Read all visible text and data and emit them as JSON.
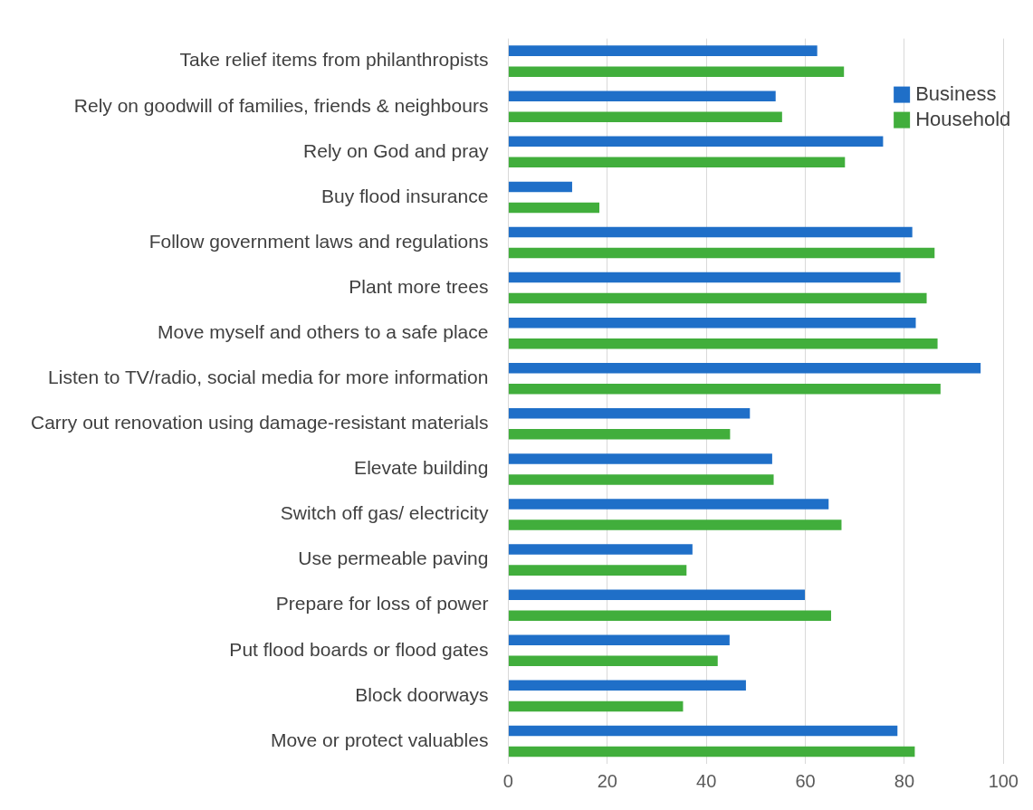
{
  "chart_data": {
    "type": "bar",
    "orientation": "horizontal",
    "categories": [
      "Take relief items from philanthropists",
      "Rely on goodwill of families, friends & neighbours",
      "Rely on God and pray",
      "Buy flood insurance",
      "Follow government laws and regulations",
      "Plant more trees",
      "Move myself and others to a safe place",
      "Listen to TV/radio, social media for more information",
      "Carry out renovation using damage-resistant materials",
      "Elevate building",
      "Switch off gas/ electricity",
      "Use permeable paving",
      "Prepare for loss of power",
      "Put flood boards or flood gates",
      "Block doorways",
      "Move or protect valuables"
    ],
    "series": [
      {
        "name": "Business",
        "color": "#1f6fc8",
        "values": [
          62.4,
          54.0,
          75.7,
          12.9,
          81.6,
          79.2,
          82.3,
          95.4,
          48.8,
          53.3,
          64.7,
          37.2,
          59.9,
          44.7,
          48.0,
          78.6
        ]
      },
      {
        "name": "Household",
        "color": "#41ae3c",
        "values": [
          67.8,
          55.3,
          68.0,
          18.4,
          86.1,
          84.5,
          86.7,
          87.3,
          44.8,
          53.6,
          67.3,
          36.0,
          65.2,
          42.3,
          35.3,
          82.1
        ]
      }
    ],
    "xlim": [
      0,
      100
    ],
    "xticks": [
      0,
      20,
      40,
      60,
      80,
      100
    ],
    "grid": "x",
    "legend": "top right"
  }
}
